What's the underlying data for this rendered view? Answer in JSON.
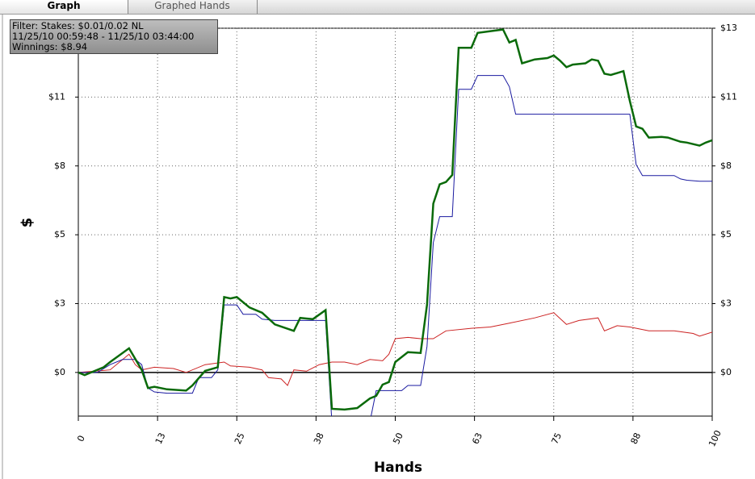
{
  "tabs": [
    "Graph",
    "Graphed Hands"
  ],
  "chart_data": {
    "type": "line",
    "info": [
      "Filter: Stakes: $0.01/0.02 NL",
      "11/25/10 00:59:48 - 11/25/10 03:44:00",
      "Winnings: $8.94"
    ],
    "x_label": "Hands",
    "y_label": "$",
    "xlim": [
      0,
      100
    ],
    "ylim": [
      -1.68,
      13.25
    ],
    "xticks": [
      0,
      {
        "value": 12.5,
        "label": "13"
      },
      25,
      {
        "value": 37.5,
        "label": "38"
      },
      50,
      {
        "value": 62.5,
        "label": "63"
      },
      75,
      {
        "value": 87.5,
        "label": "88"
      },
      100
    ],
    "yticks": [
      {
        "value": 0,
        "label": "$0"
      },
      {
        "value": 2.65,
        "label": "$3"
      },
      {
        "value": 5.3,
        "label": "$5"
      },
      {
        "value": 7.95,
        "label": "$8"
      },
      {
        "value": 10.6,
        "label": "$11"
      },
      {
        "value": 13.25,
        "label": "$13"
      }
    ],
    "grid": true,
    "series": [
      {
        "color": "#cc2222",
        "width": 1,
        "x": [
          0,
          5,
          8,
          9,
          10,
          12,
          15,
          17,
          20,
          23,
          24,
          27,
          29,
          30,
          32,
          33,
          34,
          36,
          38,
          40,
          42,
          44,
          46,
          48,
          49,
          50,
          52,
          54,
          56,
          58,
          62,
          65,
          68,
          72,
          75,
          77,
          79,
          82,
          83,
          85,
          87,
          90,
          94,
          97,
          98,
          100
        ],
        "values": [
          0,
          0.1,
          0.7,
          0.3,
          0.1,
          0.2,
          0.15,
          0,
          0.3,
          0.4,
          0.25,
          0.2,
          0.1,
          -0.2,
          -0.25,
          -0.5,
          0.1,
          0.05,
          0.3,
          0.4,
          0.4,
          0.3,
          0.5,
          0.45,
          0.7,
          1.3,
          1.35,
          1.3,
          1.3,
          1.6,
          1.7,
          1.75,
          1.9,
          2.1,
          2.3,
          1.85,
          2.0,
          2.1,
          1.6,
          1.8,
          1.75,
          1.6,
          1.6,
          1.5,
          1.4,
          1.55
        ]
      },
      {
        "color": "#1a1aa0",
        "width": 1,
        "x": [
          0,
          3,
          5,
          7,
          9,
          10,
          11,
          12,
          14,
          18,
          19,
          21,
          22,
          23,
          25,
          26,
          28,
          29,
          31,
          39,
          40,
          46,
          47,
          51,
          52,
          54,
          55,
          56,
          57,
          59,
          60,
          62,
          63,
          67,
          68,
          69,
          87,
          88,
          89,
          94,
          95,
          96,
          98,
          100
        ],
        "values": [
          0,
          0,
          0.3,
          0.5,
          0.5,
          0.3,
          -0.6,
          -0.75,
          -0.8,
          -0.8,
          -0.2,
          -0.2,
          0.1,
          2.6,
          2.6,
          2.24,
          2.24,
          2.05,
          2.0,
          2.0,
          -1.9,
          -1.9,
          -0.7,
          -0.7,
          -0.5,
          -0.5,
          1.0,
          5.0,
          6.0,
          6.0,
          10.9,
          10.9,
          11.43,
          11.43,
          11.0,
          9.94,
          9.94,
          8.0,
          7.58,
          7.58,
          7.45,
          7.4,
          7.36,
          7.36
        ]
      },
      {
        "color": "#0a6a0a",
        "width": 2.5,
        "x": [
          0,
          1,
          2,
          4,
          5,
          8,
          10,
          11,
          12,
          14,
          17,
          18,
          20,
          22,
          23,
          24,
          25,
          27,
          29,
          31,
          34,
          35,
          37,
          39,
          40,
          42,
          44,
          46,
          47,
          48,
          49,
          50,
          52,
          54,
          55,
          56,
          57,
          58,
          59,
          60,
          62,
          63,
          66,
          67,
          68,
          69,
          70,
          72,
          74,
          75,
          76,
          77,
          78,
          80,
          81,
          82,
          83,
          84,
          86,
          87,
          88,
          89,
          90,
          92,
          93,
          95,
          96,
          98,
          99,
          100
        ],
        "values": [
          0,
          -0.1,
          0,
          0.2,
          0.4,
          0.93,
          0.1,
          -0.6,
          -0.55,
          -0.65,
          -0.7,
          -0.5,
          0.06,
          0.2,
          2.9,
          2.85,
          2.9,
          2.5,
          2.3,
          1.85,
          1.6,
          2.1,
          2.05,
          2.4,
          -1.4,
          -1.43,
          -1.37,
          -1.0,
          -0.9,
          -0.47,
          -0.37,
          0.4,
          0.78,
          0.75,
          2.6,
          6.5,
          7.24,
          7.33,
          7.6,
          12.5,
          12.5,
          13.07,
          13.17,
          13.2,
          12.7,
          12.8,
          11.9,
          12.05,
          12.1,
          12.2,
          12.0,
          11.75,
          11.85,
          11.9,
          12.05,
          12.0,
          11.5,
          11.45,
          11.6,
          10.45,
          9.47,
          9.38,
          9.04,
          9.07,
          9.04,
          8.88,
          8.85,
          8.73,
          8.85,
          8.94
        ]
      }
    ]
  }
}
